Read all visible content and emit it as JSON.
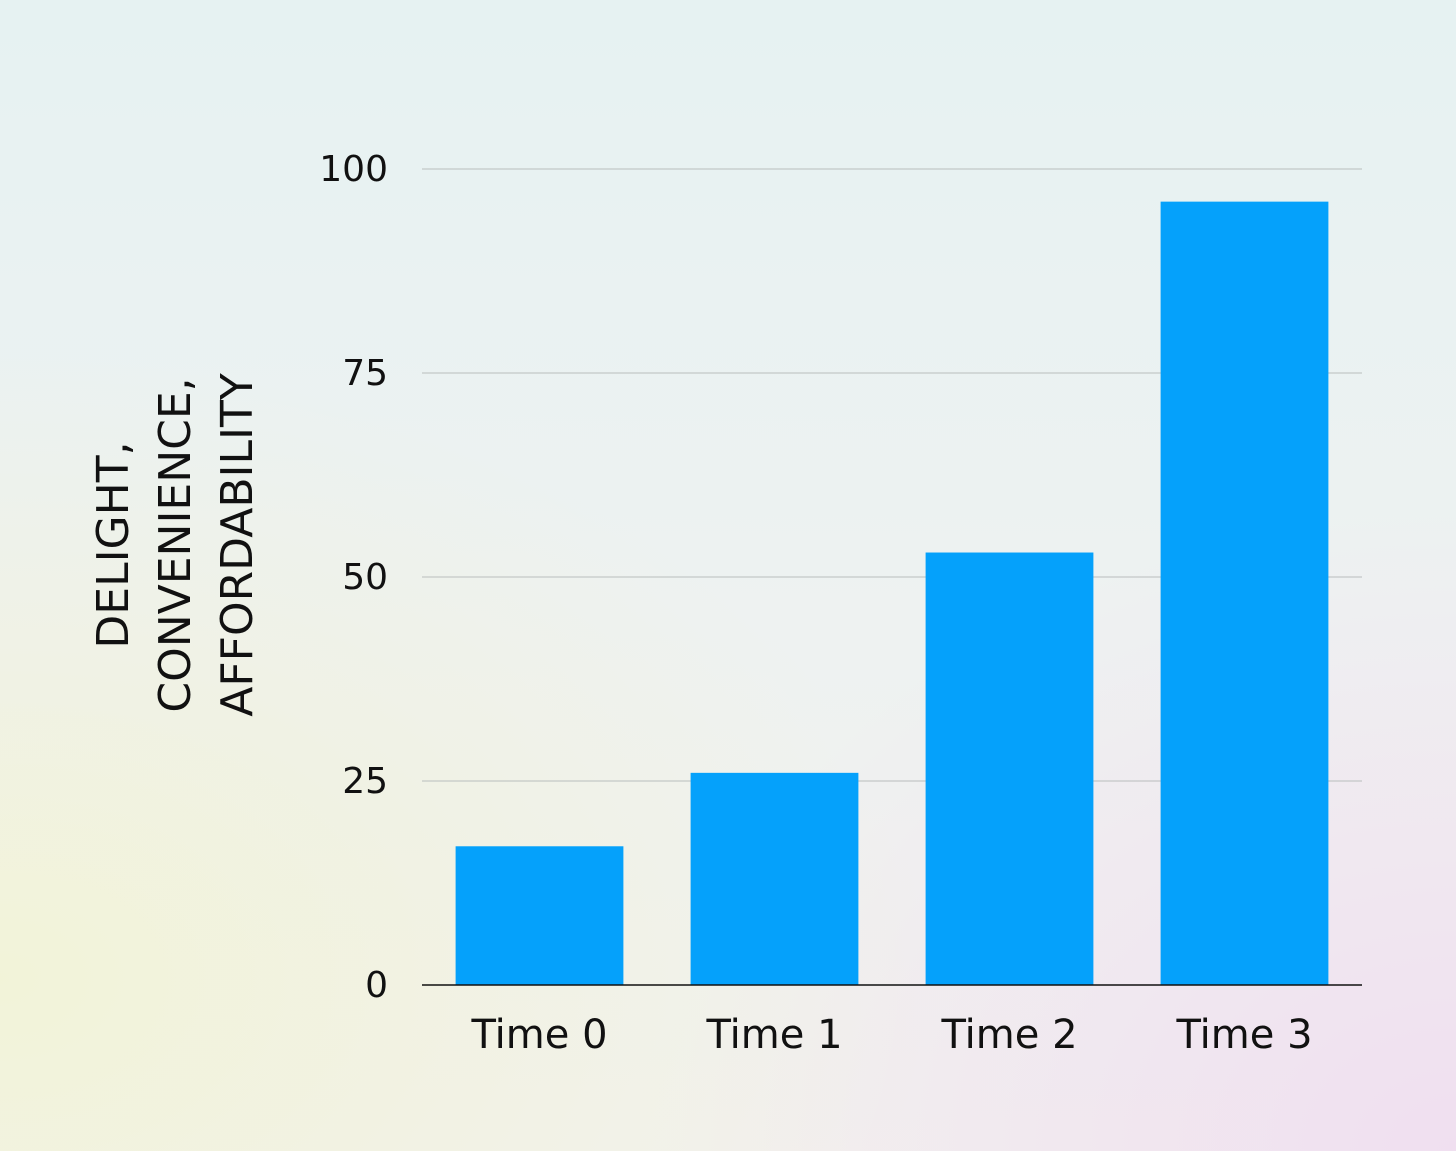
{
  "chart_data": {
    "type": "bar",
    "y_label": [
      "DELIGHT,",
      "CONVENIENCE,",
      "AFFORDABILITY"
    ],
    "categories": [
      "Time 0",
      "Time 1",
      "Time 2",
      "Time 3"
    ],
    "values": [
      17,
      26,
      53,
      96
    ],
    "color": "#05a1fb",
    "ylim": [
      0,
      100
    ],
    "yticks": [
      0,
      25,
      50,
      75,
      100
    ],
    "grid": true
  }
}
